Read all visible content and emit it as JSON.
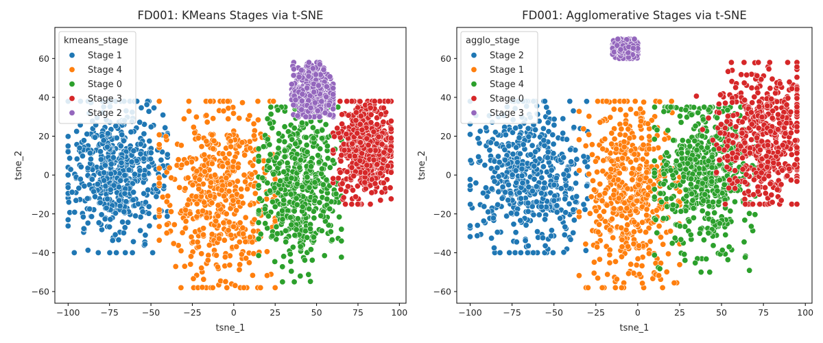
{
  "chart_data": [
    {
      "type": "scatter",
      "title": "FD001: KMeans Stages via t-SNE",
      "xlabel": "tsne_1",
      "ylabel": "tsne_2",
      "xlim": [
        -108,
        104
      ],
      "ylim": [
        -66,
        76
      ],
      "xticks": [
        -100,
        -75,
        -50,
        -25,
        0,
        25,
        50,
        75,
        100
      ],
      "yticks": [
        -60,
        -40,
        -20,
        0,
        20,
        40,
        60
      ],
      "legend": {
        "title": "kmeans_stage",
        "placement": "top-left",
        "entries": [
          {
            "label": "Stage 1",
            "color": "#1f77b4"
          },
          {
            "label": "Stage 4",
            "color": "#ff7f0e"
          },
          {
            "label": "Stage 0",
            "color": "#2ca02c"
          },
          {
            "label": "Stage 3",
            "color": "#d62728"
          },
          {
            "label": "Stage 2",
            "color": "#9467bd"
          }
        ]
      },
      "series": [
        {
          "name": "Stage 1",
          "color": "#1f77b4",
          "x_range": [
            -100,
            -40
          ],
          "y_range": [
            -40,
            38
          ],
          "center": [
            -70,
            0
          ]
        },
        {
          "name": "Stage 4",
          "color": "#ff7f0e",
          "x_range": [
            -45,
            25
          ],
          "y_range": [
            -58,
            38
          ],
          "center": [
            -10,
            -10
          ]
        },
        {
          "name": "Stage 0",
          "color": "#2ca02c",
          "x_range": [
            15,
            65
          ],
          "y_range": [
            -55,
            35
          ],
          "center": [
            40,
            -5
          ]
        },
        {
          "name": "Stage 3",
          "color": "#d62728",
          "x_range": [
            60,
            95
          ],
          "y_range": [
            -15,
            38
          ],
          "center": [
            80,
            15
          ]
        },
        {
          "name": "Stage 2",
          "color": "#9467bd",
          "x_range": [
            35,
            60
          ],
          "y_range": [
            30,
            58
          ],
          "center": [
            48,
            42
          ]
        }
      ]
    },
    {
      "type": "scatter",
      "title": "FD001: Agglomerative Stages via t-SNE",
      "xlabel": "tsne_1",
      "ylabel": "tsne_2",
      "xlim": [
        -108,
        104
      ],
      "ylim": [
        -66,
        76
      ],
      "xticks": [
        -100,
        -75,
        -50,
        -25,
        0,
        25,
        50,
        75,
        100
      ],
      "yticks": [
        -60,
        -40,
        -20,
        0,
        20,
        40,
        60
      ],
      "legend": {
        "title": "agglo_stage",
        "placement": "top-left",
        "entries": [
          {
            "label": "Stage 2",
            "color": "#1f77b4"
          },
          {
            "label": "Stage 1",
            "color": "#ff7f0e"
          },
          {
            "label": "Stage 4",
            "color": "#2ca02c"
          },
          {
            "label": "Stage 0",
            "color": "#d62728"
          },
          {
            "label": "Stage 3",
            "color": "#9467bd"
          }
        ]
      },
      "series": [
        {
          "name": "Stage 2",
          "color": "#1f77b4",
          "x_range": [
            -100,
            -30
          ],
          "y_range": [
            -40,
            38
          ],
          "center": [
            -65,
            0
          ]
        },
        {
          "name": "Stage 1",
          "color": "#ff7f0e",
          "x_range": [
            -35,
            25
          ],
          "y_range": [
            -58,
            38
          ],
          "center": [
            -5,
            -10
          ]
        },
        {
          "name": "Stage 4",
          "color": "#2ca02c",
          "x_range": [
            10,
            70
          ],
          "y_range": [
            -50,
            35
          ],
          "center": [
            40,
            0
          ]
        },
        {
          "name": "Stage 0",
          "color": "#d62728",
          "x_range": [
            35,
            95
          ],
          "y_range": [
            -15,
            58
          ],
          "center": [
            75,
            20
          ]
        },
        {
          "name": "Stage 3",
          "color": "#9467bd",
          "x_range": [
            -15,
            0
          ],
          "y_range": [
            60,
            70
          ],
          "center": [
            -7,
            65
          ]
        }
      ]
    }
  ]
}
